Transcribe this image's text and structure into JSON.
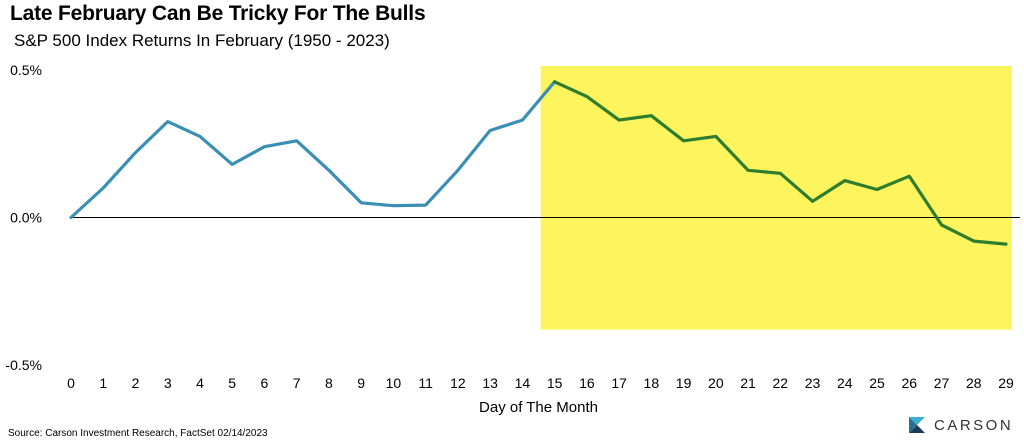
{
  "header": {
    "title": "Late February Can Be Tricky For The Bulls",
    "subtitle": "S&P 500 Index Returns In February (1950 - 2023)"
  },
  "footer": {
    "source": "Source: Carson Investment Research, FactSet 02/14/2023",
    "brand": "CARSON",
    "brand_icon": "carson-logo-icon"
  },
  "colors": {
    "line_early": "#3a8fb5",
    "line_late": "#2e7d2e",
    "highlight": "#fdf45e",
    "brand_dark": "#1b3a57",
    "brand_light": "#3bb1cf"
  },
  "chart_data": {
    "type": "line",
    "title": "Late February Can Be Tricky For The Bulls",
    "subtitle": "S&P 500 Index Returns In February (1950 - 2023)",
    "xlabel": "Day of The Month",
    "ylabel": "",
    "x": [
      0,
      1,
      2,
      3,
      4,
      5,
      6,
      7,
      8,
      9,
      10,
      11,
      12,
      13,
      14,
      15,
      16,
      17,
      18,
      19,
      20,
      21,
      22,
      23,
      24,
      25,
      26,
      27,
      28,
      29
    ],
    "y": [
      0.0,
      0.1,
      0.22,
      0.325,
      0.275,
      0.18,
      0.24,
      0.26,
      0.16,
      0.05,
      0.04,
      0.042,
      0.16,
      0.295,
      0.33,
      0.46,
      0.41,
      0.33,
      0.345,
      0.26,
      0.275,
      0.16,
      0.15,
      0.055,
      0.125,
      0.095,
      0.14,
      -0.025,
      -0.08,
      -0.09
    ],
    "ylim": [
      -0.5,
      0.5
    ],
    "yticks": [
      0.5,
      0.0,
      -0.5
    ],
    "ytick_labels": [
      "0.5%",
      "0.0%",
      "-0.5%"
    ],
    "xtick_labels": [
      "0",
      "1",
      "2",
      "3",
      "4",
      "5",
      "6",
      "7",
      "8",
      "9",
      "10",
      "11",
      "12",
      "13",
      "14",
      "15",
      "16",
      "17",
      "18",
      "19",
      "20",
      "21",
      "22",
      "23",
      "24",
      "25",
      "26",
      "27",
      "28",
      "29"
    ],
    "highlight_range": [
      15,
      29
    ],
    "grid": false
  }
}
